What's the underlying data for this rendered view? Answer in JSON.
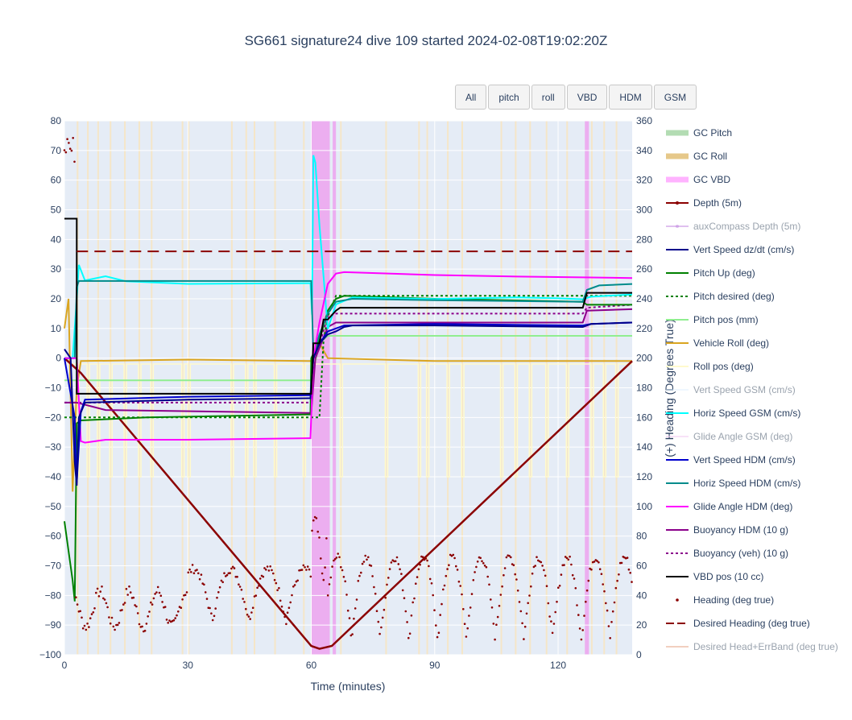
{
  "buttons": [
    "All",
    "pitch",
    "roll",
    "VBD",
    "HDM",
    "GSM"
  ],
  "chart_data": {
    "type": "line",
    "title": "SG661 signature24 dive 109 started 2024-02-08T19:02:20Z",
    "xlabel": "Time (minutes)",
    "ylabel": "",
    "y2label": "(+) Heading (Degrees True)",
    "xlim": [
      0,
      138
    ],
    "ylim": [
      -100,
      80
    ],
    "y2lim": [
      0,
      360
    ],
    "x_ticks": [
      "0",
      "30",
      "60",
      "90",
      "120"
    ],
    "y_ticks": [
      "80",
      "70",
      "60",
      "50",
      "40",
      "30",
      "20",
      "10",
      "0",
      "−10",
      "−20",
      "−30",
      "−40",
      "−50",
      "−60",
      "−70",
      "−80",
      "−90",
      "−100"
    ],
    "y2_ticks": [
      "360",
      "340",
      "320",
      "300",
      "280",
      "260",
      "240",
      "220",
      "200",
      "180",
      "160",
      "140",
      "120",
      "100",
      "80",
      "60",
      "40",
      "20",
      "0"
    ],
    "grid": true,
    "legend_position": "right",
    "vbd_bands": [
      [
        60,
        64.5
      ],
      [
        65.2,
        66
      ],
      [
        126.5,
        127.5
      ]
    ],
    "roll_bands": [
      3,
      5.5,
      8,
      11,
      14.5,
      18,
      21,
      28.5,
      30,
      40.5,
      44,
      46,
      51,
      58,
      67,
      78,
      86,
      88,
      93,
      96.5,
      106,
      109.5,
      113,
      117,
      122,
      128,
      131,
      134
    ],
    "series": [
      {
        "name": "GC Pitch",
        "color": "#b3dcb3",
        "style": "band",
        "visible": true
      },
      {
        "name": "GC Roll",
        "color": "#e6c88a",
        "style": "band",
        "visible": true
      },
      {
        "name": "GC VBD",
        "color": "#ffb3ff",
        "style": "band",
        "visible": true
      },
      {
        "name": "Depth (5m)",
        "color": "#8b0000",
        "style": "line-marker",
        "visible": true,
        "x": [
          0,
          4,
          60,
          62,
          63.5,
          65,
          138
        ],
        "y": [
          0,
          -5,
          -97,
          -98,
          -97.5,
          -97,
          -1
        ]
      },
      {
        "name": "auxCompass Depth (5m)",
        "color": "#c083e0",
        "style": "line-marker",
        "visible": false
      },
      {
        "name": "Vert Speed dz/dt (cm/s)",
        "color": "#00008b",
        "style": "line",
        "visible": true,
        "x": [
          0,
          1.5,
          2.5,
          3,
          3.5,
          5,
          30,
          59.8,
          60.5,
          62,
          64,
          66,
          68,
          70,
          90,
          126,
          128,
          138
        ],
        "y": [
          3,
          0,
          -35,
          -43,
          -20,
          -15,
          -14,
          -13.5,
          0,
          5,
          8,
          9,
          10.5,
          11,
          11,
          10.5,
          11.5,
          12
        ]
      },
      {
        "name": "Pitch Up (deg)",
        "color": "#008000",
        "style": "line",
        "visible": true,
        "x": [
          0,
          1,
          2,
          2.5,
          3,
          4,
          20,
          59.8,
          60,
          62,
          64,
          66,
          68,
          90,
          126,
          127,
          138
        ],
        "y": [
          -55,
          -65,
          -75,
          -82,
          -22,
          -21,
          -20,
          -19,
          0,
          6,
          16,
          20,
          21,
          20,
          19,
          18,
          18
        ]
      },
      {
        "name": "Pitch desired (deg)",
        "color": "#008000",
        "style": "dot",
        "visible": true,
        "x": [
          0,
          3,
          4,
          62,
          63,
          64,
          66,
          138
        ],
        "y": [
          -20,
          -20,
          -20,
          -20,
          6,
          14,
          21,
          21
        ]
      },
      {
        "name": "Pitch pos (mm)",
        "color": "#90ee90",
        "style": "line",
        "visible": true,
        "x": [
          0,
          3,
          60,
          62,
          64,
          138
        ],
        "y": [
          -7.5,
          -7.5,
          -7.5,
          5,
          7.5,
          7.5
        ]
      },
      {
        "name": "Vehicle Roll (deg)",
        "color": "#daa520",
        "style": "line",
        "visible": true,
        "x": [
          0,
          1,
          2,
          3,
          4,
          30,
          60,
          62,
          64,
          90,
          138
        ],
        "y": [
          10,
          20,
          -45,
          -10,
          -1,
          -0.5,
          -1,
          5,
          0,
          -1,
          -1
        ]
      },
      {
        "name": "Roll pos (deg)",
        "color": "#fffacd",
        "style": "line",
        "visible": true
      },
      {
        "name": "Vert Speed GSM (cm/s)",
        "color": "#e0f0ff",
        "style": "line",
        "visible": false
      },
      {
        "name": "Horiz Speed GSM (cm/s)",
        "color": "#00ffff",
        "style": "line",
        "visible": true,
        "x": [
          0,
          2,
          3,
          3.5,
          5,
          10,
          15,
          30,
          59.8,
          60.2,
          60.5,
          61,
          62,
          64,
          66,
          70,
          90,
          110,
          120,
          126,
          128,
          138
        ],
        "y": [
          0,
          0,
          20,
          31,
          26,
          28,
          25.5,
          25,
          25,
          15,
          68,
          66,
          45,
          10,
          18,
          20,
          20,
          21,
          20,
          19.5,
          21,
          22
        ]
      },
      {
        "name": "Glide Angle GSM (deg)",
        "color": "#f3c6f3",
        "style": "line",
        "visible": false
      },
      {
        "name": "Vert Speed HDM (cm/s)",
        "color": "#0000cd",
        "style": "line",
        "visible": true,
        "x": [
          0,
          2.5,
          3,
          4,
          5,
          30,
          59.8,
          60.5,
          62,
          64,
          66,
          68,
          90,
          126,
          128,
          138
        ],
        "y": [
          0,
          -20,
          -42,
          -18,
          -14,
          -13,
          -12.5,
          0,
          5,
          9,
          10,
          11,
          11.5,
          11,
          11.5,
          12
        ]
      },
      {
        "name": "Horiz Speed HDM (cm/s)",
        "color": "#008b8b",
        "style": "line",
        "visible": true,
        "x": [
          0,
          2.5,
          3,
          3.5,
          60,
          60.5,
          62,
          64,
          66,
          70,
          90,
          126,
          127,
          130,
          138
        ],
        "y": [
          0,
          0,
          24,
          26,
          26,
          1,
          8,
          15,
          19,
          20,
          19.5,
          19,
          23,
          24.5,
          25
        ]
      },
      {
        "name": "Glide Angle HDM (deg)",
        "color": "#ff00ff",
        "style": "line",
        "visible": true,
        "x": [
          0,
          3,
          4,
          5,
          10,
          30,
          59.8,
          60.5,
          62,
          64,
          66,
          68,
          90,
          110,
          138
        ],
        "y": [
          0,
          0,
          -28,
          -28.5,
          -27.5,
          -27.5,
          -27,
          0,
          12,
          25,
          28.5,
          29,
          28,
          27.5,
          27
        ]
      },
      {
        "name": "Buoyancy HDM (10 g)",
        "color": "#8b008b",
        "style": "line",
        "visible": true,
        "x": [
          0,
          3,
          10,
          60,
          61,
          64,
          66,
          70,
          126,
          127,
          138
        ],
        "y": [
          -15,
          -15,
          -17.5,
          -18.5,
          0,
          10.5,
          12,
          12,
          12,
          16,
          16.5
        ]
      },
      {
        "name": "Buoyancy (veh) (10 g)",
        "color": "#8b008b",
        "style": "dot",
        "visible": true,
        "x": [
          0,
          3,
          60,
          61,
          64,
          66,
          126,
          127,
          138
        ],
        "y": [
          -15,
          -15,
          -15,
          0,
          14,
          15,
          15,
          17,
          18
        ]
      },
      {
        "name": "VBD pos (10 cc)",
        "color": "#000000",
        "style": "line",
        "visible": true,
        "x": [
          0,
          3,
          3,
          60,
          60.5,
          62,
          63,
          64,
          66,
          67,
          126,
          127,
          138
        ],
        "y": [
          47,
          47,
          -12,
          -12,
          5,
          5,
          13,
          13,
          16,
          17,
          17,
          22,
          22
        ]
      },
      {
        "name": "Heading (deg true)",
        "color": "#8b0000",
        "style": "marker",
        "visible": true
      },
      {
        "name": "Desired Heading (deg true)",
        "color": "#8b0000",
        "style": "dash",
        "visible": true,
        "x": [
          3,
          138
        ],
        "y2": [
          272,
          272
        ]
      },
      {
        "name": "Desired Head+ErrBand (deg true)",
        "color": "#e6a080",
        "style": "line",
        "visible": false
      }
    ]
  }
}
